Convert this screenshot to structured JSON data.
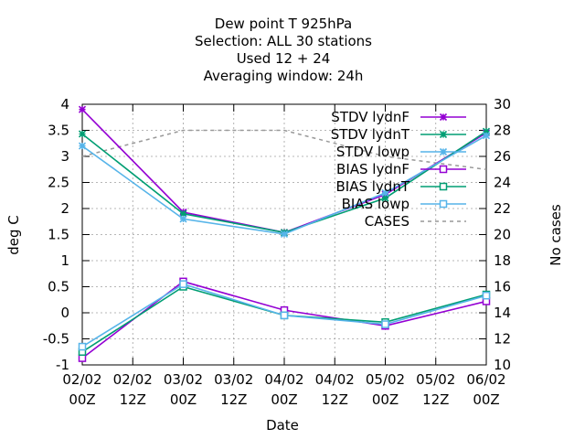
{
  "chart_data": {
    "type": "line",
    "title_lines": [
      "Dew point T 925hPa",
      "Selection: ALL      30 stations",
      "Used  12 + 24",
      "Averaging window: 24h"
    ],
    "xlabel": "Date",
    "ylabel": "deg C",
    "y2label": "No cases",
    "x_ticks": [
      [
        "02/02",
        "00Z"
      ],
      [
        "02/02",
        "12Z"
      ],
      [
        "03/02",
        "00Z"
      ],
      [
        "03/02",
        "12Z"
      ],
      [
        "04/02",
        "00Z"
      ],
      [
        "04/02",
        "12Z"
      ],
      [
        "05/02",
        "00Z"
      ],
      [
        "05/02",
        "12Z"
      ],
      [
        "06/02",
        "00Z"
      ]
    ],
    "x": [
      "02/02 00Z",
      "03/02 00Z",
      "04/02 00Z",
      "05/02 00Z",
      "06/02 00Z"
    ],
    "ylim": [
      -1,
      4
    ],
    "y_ticks": [
      "-1",
      "-0.5",
      "0",
      "0.5",
      "1",
      "1.5",
      "2",
      "2.5",
      "3",
      "3.5",
      "4"
    ],
    "y2lim": [
      10,
      30
    ],
    "y2_ticks": [
      "10",
      "12",
      "14",
      "16",
      "18",
      "20",
      "22",
      "24",
      "26",
      "28",
      "30"
    ],
    "grid": true,
    "legend_position": "top-right",
    "series": [
      {
        "name": "STDV lydnF",
        "axis": "y",
        "color": "#9400d3",
        "marker": "x",
        "dash": false,
        "values": [
          3.9,
          1.93,
          1.54,
          2.27,
          3.45
        ]
      },
      {
        "name": "STDV lydnT",
        "axis": "y",
        "color": "#009e73",
        "marker": "x",
        "dash": false,
        "values": [
          3.43,
          1.9,
          1.54,
          2.2,
          3.48
        ]
      },
      {
        "name": "STDV lowp",
        "axis": "y",
        "color": "#56b4e9",
        "marker": "x",
        "dash": false,
        "values": [
          3.2,
          1.8,
          1.51,
          2.3,
          3.4
        ]
      },
      {
        "name": "BIAS lydnF",
        "axis": "y",
        "color": "#9400d3",
        "marker": "square",
        "dash": false,
        "values": [
          -0.87,
          0.6,
          0.05,
          -0.25,
          0.22
        ]
      },
      {
        "name": "BIAS lydnT",
        "axis": "y",
        "color": "#009e73",
        "marker": "square",
        "dash": false,
        "values": [
          -0.75,
          0.5,
          -0.05,
          -0.18,
          0.35
        ]
      },
      {
        "name": "BIAS lowp",
        "axis": "y",
        "color": "#56b4e9",
        "marker": "square",
        "dash": false,
        "values": [
          -0.65,
          0.55,
          -0.05,
          -0.22,
          0.33
        ]
      },
      {
        "name": "CASES",
        "axis": "y2",
        "color": "#999999",
        "marker": "none",
        "dash": true,
        "values": [
          26,
          28,
          28,
          26,
          25
        ]
      }
    ]
  }
}
